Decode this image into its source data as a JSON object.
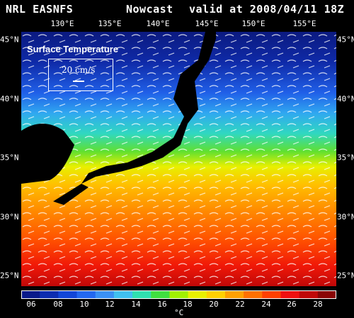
{
  "header": {
    "source": "NRL EASNFS",
    "product": "Nowcast",
    "valid": "valid at 2008/04/11 18Z"
  },
  "legend": {
    "title": "Surface Temperature",
    "vector_label": "20 cm/s"
  },
  "lon_labels": [
    "130°E",
    "135°E",
    "140°E",
    "145°E",
    "150°E",
    "155°E"
  ],
  "lat_labels_left": [
    "45°N",
    "40°N",
    "35°N",
    "30°N",
    "25°N"
  ],
  "lat_labels_right": [
    "45°N",
    "40°N",
    "35°N",
    "30°N",
    "25°N"
  ],
  "colorbar": {
    "ticks": [
      "06",
      "08",
      "10",
      "12",
      "14",
      "16",
      "18",
      "20",
      "22",
      "24",
      "26",
      "28"
    ],
    "unit": "°C",
    "colors": [
      "#0a1a8a",
      "#0d2db0",
      "#1246d8",
      "#2368f0",
      "#3a90f5",
      "#40c0f0",
      "#30e0b0",
      "#40e040",
      "#a0f000",
      "#e8f000",
      "#ffd000",
      "#ffa000",
      "#ff7000",
      "#ff4000",
      "#f01010",
      "#c00808",
      "#8a0505"
    ]
  }
}
